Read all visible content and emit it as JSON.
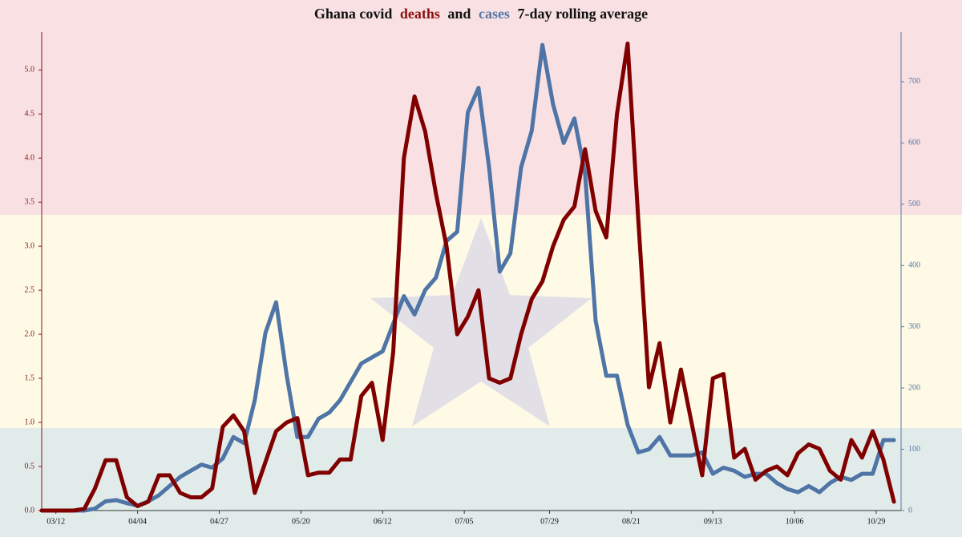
{
  "chart_data": {
    "type": "line",
    "title": [
      "Ghana covid",
      "deaths",
      "and",
      "cases",
      "7-day rolling average"
    ],
    "x": [
      "03/08",
      "03/11",
      "03/14",
      "03/17",
      "03/20",
      "03/23",
      "03/26",
      "03/29",
      "04/01",
      "04/04",
      "04/07",
      "04/10",
      "04/13",
      "04/16",
      "04/19",
      "04/22",
      "04/25",
      "04/28",
      "05/01",
      "05/04",
      "05/07",
      "05/10",
      "05/13",
      "05/16",
      "05/19",
      "05/22",
      "05/25",
      "05/28",
      "05/31",
      "06/03",
      "06/06",
      "06/09",
      "06/12",
      "06/15",
      "06/18",
      "06/21",
      "06/24",
      "06/27",
      "06/30",
      "07/03",
      "07/06",
      "07/09",
      "07/12",
      "07/15",
      "07/18",
      "07/21",
      "07/24",
      "07/27",
      "07/30",
      "08/02",
      "08/05",
      "08/08",
      "08/11",
      "08/14",
      "08/17",
      "08/20",
      "08/23",
      "08/26",
      "08/29",
      "09/01",
      "09/04",
      "09/07",
      "09/10",
      "09/13",
      "09/16",
      "09/19",
      "09/22",
      "09/25",
      "09/28",
      "10/01",
      "10/04",
      "10/07",
      "10/10",
      "10/13",
      "10/16",
      "10/19",
      "10/22",
      "10/25",
      "10/28",
      "10/31",
      "11/03"
    ],
    "xlim": [
      "03/08",
      "11/05"
    ],
    "xticks": [
      "03/12",
      "04/04",
      "04/27",
      "05/20",
      "06/12",
      "07/05",
      "07/29",
      "08/21",
      "09/13",
      "10/06",
      "10/29"
    ],
    "series": [
      {
        "name": "cases",
        "color": "#4f74a6",
        "axis": "y2",
        "values": [
          0,
          0,
          0,
          0,
          0,
          3,
          15,
          17,
          12,
          8,
          15,
          25,
          40,
          55,
          65,
          75,
          70,
          85,
          120,
          110,
          180,
          290,
          340,
          220,
          120,
          120,
          150,
          160,
          180,
          210,
          240,
          250,
          260,
          305,
          350,
          320,
          360,
          380,
          440,
          455,
          650,
          690,
          560,
          390,
          420,
          560,
          620,
          760,
          663,
          600,
          640,
          550,
          310,
          220,
          220,
          140,
          95,
          100,
          120,
          90,
          90,
          90,
          95,
          60,
          70,
          65,
          55,
          60,
          60,
          45,
          35,
          30,
          40,
          30,
          45,
          55,
          50,
          60,
          60,
          115,
          115
        ]
      },
      {
        "name": "deaths",
        "color": "#800000",
        "values": [
          0,
          0,
          0,
          0,
          0.02,
          0.25,
          0.57,
          0.57,
          0.15,
          0.05,
          0.1,
          0.4,
          0.4,
          0.2,
          0.15,
          0.15,
          0.25,
          0.95,
          1.08,
          0.9,
          0.2,
          0.55,
          0.9,
          1.0,
          1.05,
          0.4,
          0.43,
          0.43,
          0.58,
          0.58,
          1.3,
          1.45,
          0.8,
          1.8,
          4.0,
          4.7,
          4.3,
          3.6,
          3.0,
          2.0,
          2.2,
          2.5,
          1.5,
          1.45,
          1.5,
          2.0,
          2.4,
          2.6,
          3.0,
          3.3,
          3.45,
          4.1,
          3.4,
          3.1,
          4.5,
          5.3,
          3.3,
          1.4,
          1.9,
          1.0,
          1.6,
          1.0,
          0.4,
          1.5,
          1.55,
          0.6,
          0.7,
          0.35,
          0.45,
          0.5,
          0.4,
          0.65,
          0.75,
          0.7,
          0.45,
          0.35,
          0.8,
          0.6,
          0.9,
          0.58,
          0.1
        ]
      }
    ],
    "ylim": [
      0,
      5.43
    ],
    "yticks": [
      {
        "value": 0,
        "label": "0.0"
      },
      0.5,
      {
        "value": 1,
        "label": "1.0"
      },
      1.5,
      {
        "value": 2,
        "label": "2.0"
      },
      2.5,
      {
        "value": 3,
        "label": "3.0"
      },
      3.5,
      {
        "value": 4,
        "label": "4.0"
      },
      4.5,
      {
        "value": 5,
        "label": "5.0"
      }
    ],
    "y2lim": [
      0,
      781
    ],
    "y2ticks": [
      0,
      100,
      200,
      300,
      400,
      500,
      600,
      700
    ]
  }
}
